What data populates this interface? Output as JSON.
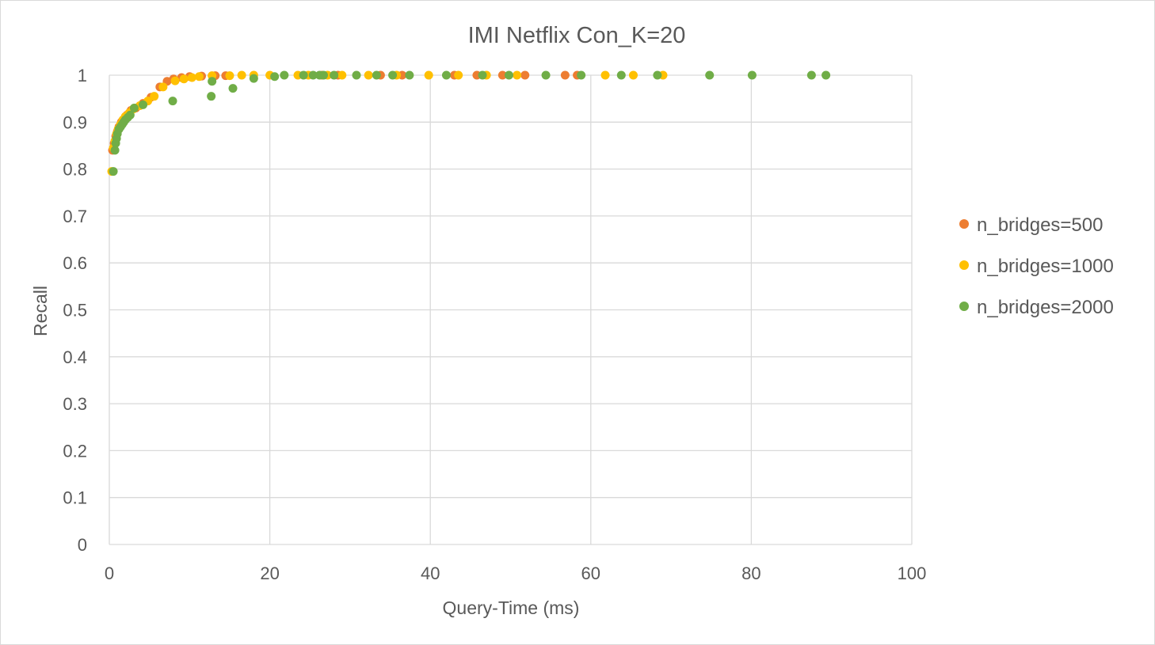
{
  "chart_data": {
    "type": "scatter",
    "title": "IMI Netflix Con_K=20",
    "xlabel": "Query-Time (ms)",
    "ylabel": "Recall",
    "xlim": [
      0,
      100
    ],
    "ylim": [
      0,
      1
    ],
    "x_ticks": [
      0,
      20,
      40,
      60,
      80,
      100
    ],
    "x_tick_labels": [
      "0",
      "20",
      "40",
      "60",
      "80",
      "100"
    ],
    "y_ticks": [
      0,
      0.1,
      0.2,
      0.3,
      0.4,
      0.5,
      0.6,
      0.7,
      0.8,
      0.9,
      1
    ],
    "y_tick_labels": [
      "0",
      "0.1",
      "0.2",
      "0.3",
      "0.4",
      "0.5",
      "0.6",
      "0.7",
      "0.8",
      "0.9",
      "1"
    ],
    "grid": true,
    "legend_position": "right",
    "series": [
      {
        "name": "n_bridges=500",
        "color": "#ed7d31",
        "points": [
          [
            0.4,
            0.84
          ],
          [
            0.6,
            0.855
          ],
          [
            0.8,
            0.87
          ],
          [
            1.0,
            0.88
          ],
          [
            1.2,
            0.89
          ],
          [
            1.5,
            0.9
          ],
          [
            1.8,
            0.905
          ],
          [
            2.2,
            0.915
          ],
          [
            2.7,
            0.925
          ],
          [
            3.3,
            0.93
          ],
          [
            4.2,
            0.94
          ],
          [
            5.2,
            0.953
          ],
          [
            6.3,
            0.975
          ],
          [
            7.2,
            0.987
          ],
          [
            8.0,
            0.992
          ],
          [
            9.0,
            0.995
          ],
          [
            10.0,
            0.997
          ],
          [
            11.5,
            0.998
          ],
          [
            13.2,
            0.999
          ],
          [
            14.5,
            0.999
          ],
          [
            26.5,
            1.0
          ],
          [
            28.5,
            1.0
          ],
          [
            33.8,
            1.0
          ],
          [
            36.5,
            1.0
          ],
          [
            43.0,
            1.0
          ],
          [
            45.8,
            1.0
          ],
          [
            49.0,
            1.0
          ],
          [
            51.8,
            1.0
          ],
          [
            56.8,
            1.0
          ],
          [
            58.3,
            1.0
          ]
        ]
      },
      {
        "name": "n_bridges=1000",
        "color": "#ffc000",
        "points": [
          [
            0.3,
            0.795
          ],
          [
            0.5,
            0.845
          ],
          [
            0.7,
            0.86
          ],
          [
            0.9,
            0.875
          ],
          [
            1.1,
            0.885
          ],
          [
            1.4,
            0.895
          ],
          [
            1.7,
            0.905
          ],
          [
            2.0,
            0.912
          ],
          [
            2.5,
            0.92
          ],
          [
            3.0,
            0.928
          ],
          [
            3.8,
            0.935
          ],
          [
            4.8,
            0.945
          ],
          [
            5.6,
            0.955
          ],
          [
            6.7,
            0.975
          ],
          [
            8.2,
            0.988
          ],
          [
            9.3,
            0.992
          ],
          [
            10.3,
            0.995
          ],
          [
            11.2,
            0.997
          ],
          [
            12.8,
            0.999
          ],
          [
            15.0,
            0.999
          ],
          [
            16.5,
            1.0
          ],
          [
            18.0,
            1.0
          ],
          [
            20.0,
            1.0
          ],
          [
            23.5,
            1.0
          ],
          [
            24.8,
            1.0
          ],
          [
            27.2,
            1.0
          ],
          [
            29.0,
            1.0
          ],
          [
            32.3,
            1.0
          ],
          [
            35.8,
            1.0
          ],
          [
            39.8,
            1.0
          ],
          [
            43.5,
            1.0
          ],
          [
            47.0,
            1.0
          ],
          [
            50.8,
            1.0
          ],
          [
            61.8,
            1.0
          ],
          [
            65.3,
            1.0
          ],
          [
            69.0,
            1.0
          ]
        ]
      },
      {
        "name": "n_bridges=2000",
        "color": "#70ad47",
        "points": [
          [
            0.5,
            0.795
          ],
          [
            0.7,
            0.84
          ],
          [
            0.8,
            0.855
          ],
          [
            0.9,
            0.865
          ],
          [
            1.0,
            0.875
          ],
          [
            1.2,
            0.885
          ],
          [
            1.4,
            0.89
          ],
          [
            1.6,
            0.895
          ],
          [
            1.8,
            0.9
          ],
          [
            2.0,
            0.905
          ],
          [
            2.3,
            0.91
          ],
          [
            2.6,
            0.915
          ],
          [
            3.1,
            0.93
          ],
          [
            4.2,
            0.937
          ],
          [
            7.9,
            0.945
          ],
          [
            12.7,
            0.955
          ],
          [
            12.8,
            0.987
          ],
          [
            15.4,
            0.972
          ],
          [
            18.0,
            0.993
          ],
          [
            20.6,
            0.997
          ],
          [
            21.8,
            1.0
          ],
          [
            24.2,
            1.0
          ],
          [
            25.4,
            1.0
          ],
          [
            26.2,
            1.0
          ],
          [
            26.7,
            1.0
          ],
          [
            28.0,
            1.0
          ],
          [
            30.8,
            1.0
          ],
          [
            33.3,
            1.0
          ],
          [
            35.3,
            1.0
          ],
          [
            37.4,
            1.0
          ],
          [
            42.0,
            1.0
          ],
          [
            46.5,
            1.0
          ],
          [
            49.8,
            1.0
          ],
          [
            54.4,
            1.0
          ],
          [
            58.8,
            1.0
          ],
          [
            63.8,
            1.0
          ],
          [
            68.3,
            1.0
          ],
          [
            74.8,
            1.0
          ],
          [
            80.1,
            1.0
          ],
          [
            87.5,
            1.0
          ],
          [
            89.3,
            1.0
          ]
        ]
      }
    ]
  }
}
